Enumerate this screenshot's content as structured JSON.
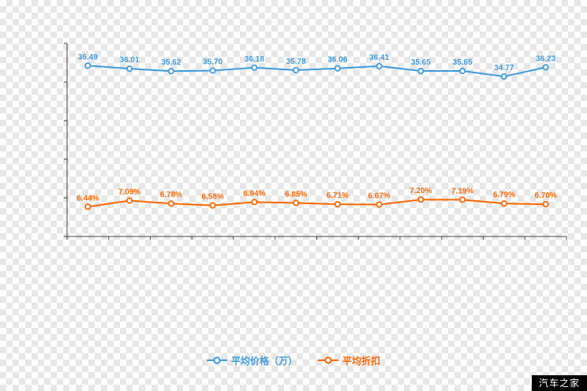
{
  "chart_data": {
    "type": "line",
    "title": "",
    "xlabel": "",
    "ylabel": "",
    "grid": false,
    "legend_position": "bottom",
    "axis_tick_labels_visible": false,
    "series": [
      {
        "name": "平均价格（万）",
        "color": "#3e9bdc",
        "value_suffix": "",
        "values": [
          36.49,
          36.01,
          35.62,
          35.7,
          36.18,
          35.78,
          36.06,
          36.41,
          35.65,
          35.65,
          34.77,
          36.23
        ]
      },
      {
        "name": "平均折扣",
        "color": "#ff6600",
        "value_suffix": "%",
        "values": [
          6.44,
          7.09,
          6.78,
          6.58,
          6.94,
          6.85,
          6.71,
          6.67,
          7.2,
          7.19,
          6.79,
          6.7
        ]
      }
    ]
  },
  "legend": {
    "items": [
      {
        "label": "平均价格（万）",
        "color": "#3e9bdc"
      },
      {
        "label": "平均折扣",
        "color": "#ff6600"
      }
    ]
  },
  "watermark": {
    "text": "汽车之家",
    "bg": "#000000",
    "fg": "#ffffff"
  }
}
